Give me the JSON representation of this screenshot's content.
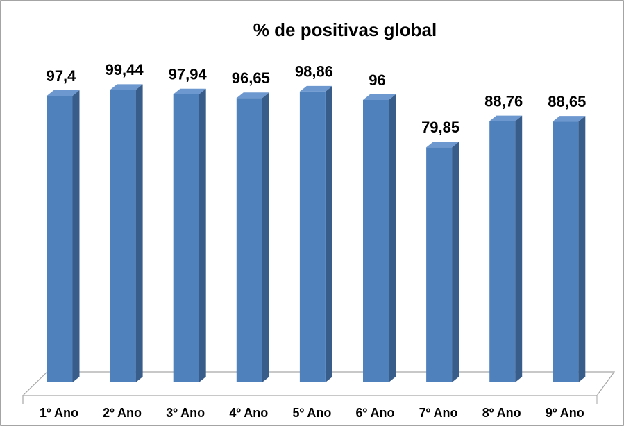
{
  "chart_data": {
    "type": "bar3d",
    "title": "% de positivas global",
    "categories": [
      "1º Ano",
      "2º Ano",
      "3º Ano",
      "4º Ano",
      "5º Ano",
      "6º Ano",
      "7º Ano",
      "8º Ano",
      "9º Ano"
    ],
    "values": [
      97.4,
      99.44,
      97.94,
      96.65,
      98.86,
      96,
      79.85,
      88.76,
      88.65
    ],
    "value_labels": [
      "97,4",
      "99,44",
      "97,94",
      "96,65",
      "98,86",
      "96",
      "79,85",
      "88,76",
      "88,65"
    ],
    "color": "#4f81bd",
    "ylim": [
      0,
      100
    ]
  }
}
